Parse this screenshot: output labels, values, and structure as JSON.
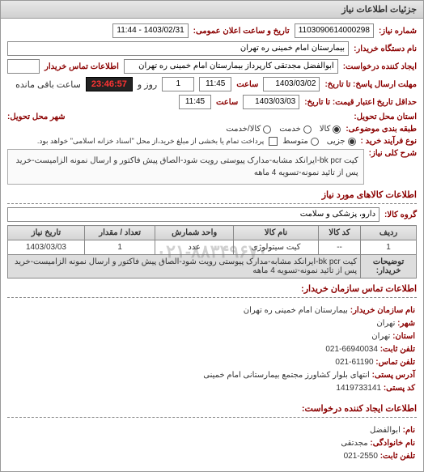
{
  "panel_title": "جزئیات اطلاعات نیاز",
  "req_number_label": "شماره نیاز:",
  "req_number": "1103090614000298",
  "announce_label": "تاریخ و ساعت اعلان عمومی:",
  "announce_value": "1403/02/31 - 11:44",
  "device_label": "نام دستگاه خریدار:",
  "device_value": "بیمارستان امام خمینی ره  تهران",
  "creator_label": "ایجاد کننده درخواست:",
  "creator_value": "ابوالفضل مجدتقی کارپرداز بیمارستان امام خمینی ره  تهران",
  "contact_buyer_label": "اطلاعات تماس خریدار",
  "contact_field": "",
  "deadline_send_label": "مهلت ارسال پاسخ: تا تاریخ:",
  "deadline_send_date": "1403/03/02",
  "time_label": "ساعت",
  "deadline_send_time": "11:45",
  "days_remain": "1",
  "days_remain_suffix": "روز و",
  "countdown": "23:46:57",
  "countdown_suffix": "ساعت باقی مانده",
  "supplier_validity_label": "حداقل تاریخ اعتبار قیمت: تا تاریخ:",
  "supplier_validity_date": "1403/03/03",
  "supplier_validity_time": "11:45",
  "delivery_place_label": "استان محل تحویل:",
  "delivery_city_label": "شهر محل تحویل:",
  "classify_label": "طبقه بندی موضوعی:",
  "radio_kala": "کالا",
  "radio_khadamat": "خدمت",
  "radio_kala_khadamat": "کالا/خدمت",
  "process_label": "نوع فرآیند خرید :",
  "radio_partial": "جزیی",
  "radio_medium": "متوسط",
  "process_note": "پرداخت تمام یا بخشی از مبلغ خرید،از محل \"اسناد خزانه اسلامی\" خواهد بود.",
  "main_desc_label": "شرح کلی نیاز:",
  "main_desc": "کیت bk pcr-ایرانکد مشابه-مدارک پیوستی رویت شود-الصاق پیش فاکتور و ارسال نمونه الزامیست-خرید پس از تائید نمونه-تسویه 4 ماهه",
  "goods_section_title": "اطلاعات کالاهای مورد نیاز",
  "goods_group_label": "گروه کالا:",
  "goods_group_value": "دارو، پزشکی و سلامت",
  "table": {
    "headers": [
      "ردیف",
      "کد کالا",
      "نام کالا",
      "واحد شمارش",
      "تعداد / مقدار",
      "تاریخ نیاز"
    ],
    "row": [
      "1",
      "--",
      "کیت سیتولوژی",
      "عدد",
      "1",
      "1403/03/03"
    ]
  },
  "buyer_note_label": "توضیحات خریدار:",
  "buyer_note": "کیت bk pcr-ایرانکد مشابه-مدارک پیوستی رویت شود-الصاق پیش فاکتور و ارسال نمونه الزامیست-خرید پس از تائید نمونه-تسویه 4 ماهه",
  "watermark": "۰۲۱-۸۸۳۴۹۶۷۰",
  "org_contact_title": "اطلاعات تماس سازمان خریدار:",
  "org_name_label": "نام سازمان خریدار:",
  "org_name": "بیمارستان امام خمینی ره تهران",
  "city_label": "شهر:",
  "city": "تهران",
  "province_label": "استان:",
  "province": "تهران",
  "phone_label": "تلفن ثابت:",
  "phone": "66940034-021",
  "fax_label": "تلفن تماس:",
  "fax": "61190-021",
  "address_label": "آدرس پستی:",
  "address": "انتهای بلوار کشاورز مجتمع بیمارستانی امام خمینی",
  "postal_label": "کد پستی:",
  "postal": "1419733141",
  "req_creator_title": "اطلاعات ایجاد کننده درخواست:",
  "fname_label": "نام:",
  "fname": "ابوالفضل",
  "lname_label": "نام خانوادگی:",
  "lname": "مجدتقی",
  "creator_phone_label": "تلفن ثابت:",
  "creator_phone": "2550-021"
}
